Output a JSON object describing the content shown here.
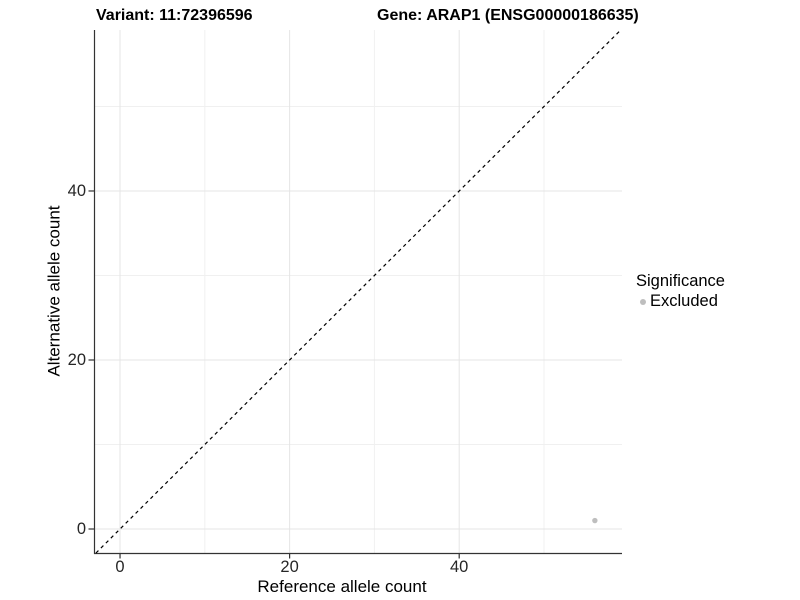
{
  "chart_data": {
    "type": "scatter",
    "title_left": "Variant: 11:72396596",
    "title_right": "Gene: ARAP1 (ENSG00000186635)",
    "xlabel": "Reference allele count",
    "ylabel": "Alternative allele count",
    "x_ticks": [
      0,
      20,
      40
    ],
    "y_ticks": [
      0,
      20,
      40
    ],
    "x_minor_ticks": [
      10,
      30,
      50
    ],
    "y_minor_ticks": [
      10,
      30,
      50
    ],
    "xlim": [
      -3.07,
      59.2
    ],
    "ylim": [
      -2.84,
      59.05
    ],
    "grid": "major and minor horizontal+vertical, light gray on white panel",
    "identity_line": {
      "style": "dashed",
      "equation": "y = x",
      "color": "#000000"
    },
    "series": [
      {
        "name": "Excluded",
        "color": "#bebebe",
        "points": [
          {
            "x": 56,
            "y": 1
          }
        ]
      }
    ],
    "legend": {
      "title": "Significance",
      "position": "right",
      "items": [
        {
          "label": "Excluded",
          "color": "#bebebe"
        }
      ]
    },
    "colors": {
      "axis_line": "#333333",
      "grid_major": "#e5e5e5",
      "grid_minor": "#f0f0f0",
      "tick_text": "#262626",
      "point": "#bebebe"
    }
  }
}
